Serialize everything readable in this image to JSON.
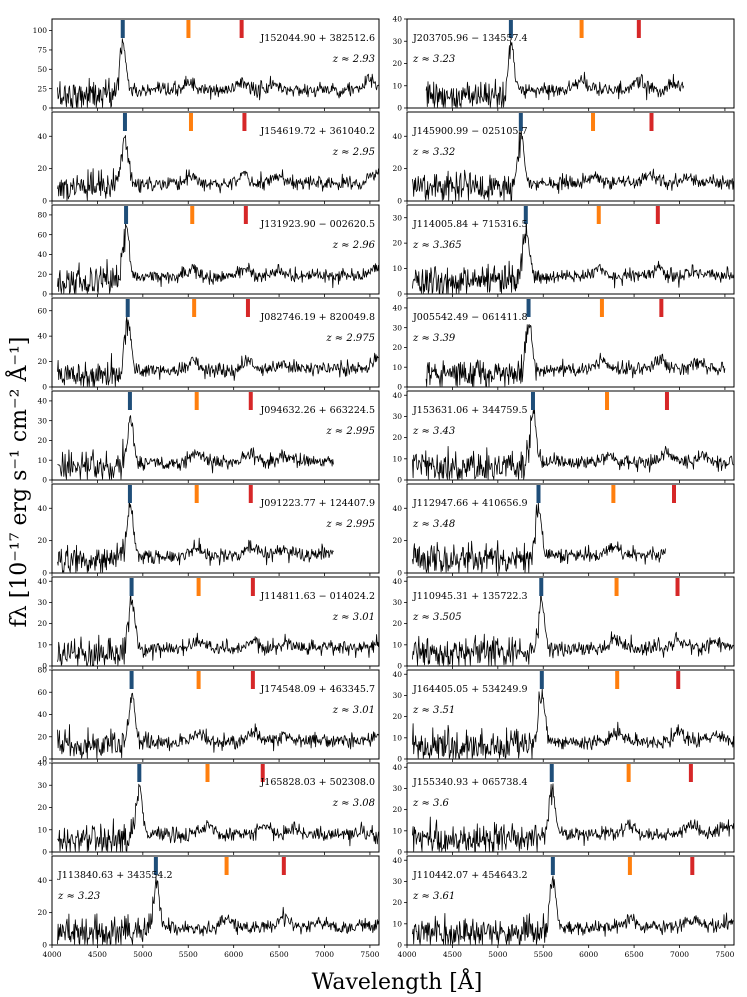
{
  "figure": {
    "ylabel": "fλ [10⁻¹⁷ erg s⁻¹ cm⁻² Å⁻¹]",
    "xlabel": "Wavelength [Å]"
  },
  "chart_data": {
    "type": "line",
    "grid": false,
    "xlim": [
      4000,
      7600
    ],
    "xticks": [
      4000,
      4500,
      5000,
      5500,
      6000,
      6500,
      7000,
      7500
    ],
    "marker_colors": [
      "#1f4e79",
      "#ff7f0e",
      "#d62728"
    ],
    "panels": [
      {
        "name": "J152044.90 + 382512.6",
        "z_label": "z ≈ 2.93",
        "z": 2.93,
        "ylim": [
          0,
          115
        ],
        "yticks": [
          0,
          25,
          50,
          75,
          100
        ],
        "label_side": "right",
        "xmax_data": 7600
      },
      {
        "name": "J154619.72 + 361040.2",
        "z_label": "z ≈ 2.95",
        "z": 2.95,
        "ylim": [
          0,
          55
        ],
        "yticks": [
          0,
          20,
          40
        ],
        "label_side": "right",
        "xmax_data": 7600
      },
      {
        "name": "J131923.90 − 002620.5",
        "z_label": "z ≈ 2.96",
        "z": 2.96,
        "ylim": [
          0,
          90
        ],
        "yticks": [
          0,
          20,
          40,
          60,
          80
        ],
        "label_side": "right",
        "xmax_data": 7600
      },
      {
        "name": "J082746.19 + 820049.8",
        "z_label": "z ≈ 2.975",
        "z": 2.975,
        "ylim": [
          0,
          70
        ],
        "yticks": [
          0,
          20,
          40,
          60
        ],
        "label_side": "right",
        "xmax_data": 7600
      },
      {
        "name": "J094632.26 + 663224.5",
        "z_label": "z ≈ 2.995",
        "z": 2.995,
        "ylim": [
          0,
          45
        ],
        "yticks": [
          0,
          10,
          20,
          30,
          40
        ],
        "label_side": "right",
        "xmax_data": 7100
      },
      {
        "name": "J091223.77 + 124407.9",
        "z_label": "z ≈ 2.995",
        "z": 2.995,
        "ylim": [
          0,
          55
        ],
        "yticks": [
          0,
          20,
          40
        ],
        "label_side": "right",
        "xmax_data": 7100
      },
      {
        "name": "J114811.63 − 014024.2",
        "z_label": "z ≈ 3.01",
        "z": 3.01,
        "ylim": [
          0,
          42
        ],
        "yticks": [
          0,
          10,
          20,
          30,
          40
        ],
        "label_side": "right",
        "xmax_data": 7600
      },
      {
        "name": "J174548.09 + 463345.7",
        "z_label": "z ≈ 3.01",
        "z": 3.01,
        "ylim": [
          0,
          80
        ],
        "yticks": [
          0,
          20,
          40,
          60,
          80
        ],
        "label_side": "right",
        "xmax_data": 7600
      },
      {
        "name": "J165828.03 + 502308.0",
        "z_label": "z ≈ 3.08",
        "z": 3.08,
        "ylim": [
          0,
          40
        ],
        "yticks": [
          0,
          10,
          20,
          30,
          40
        ],
        "label_side": "right",
        "xmax_data": 7600
      },
      {
        "name": "J113840.63 + 343554.2",
        "z_label": "z ≈ 3.23",
        "z": 3.23,
        "ylim": [
          0,
          55
        ],
        "yticks": [
          0,
          20,
          40
        ],
        "label_side": "left",
        "xmax_data": 7600
      },
      {
        "name": "J203705.96 − 134557.4",
        "z_label": "z ≈ 3.23",
        "z": 3.23,
        "ylim": [
          0,
          40
        ],
        "yticks": [
          0,
          10,
          20,
          30,
          40
        ],
        "label_side": "left",
        "xmax_data": 7050
      },
      {
        "name": "J145900.99 − 025105.7",
        "z_label": "z ≈ 3.32",
        "z": 3.32,
        "ylim": [
          0,
          55
        ],
        "yticks": [
          0,
          20,
          40
        ],
        "label_side": "left",
        "xmax_data": 7600
      },
      {
        "name": "J114005.84 + 715316.5",
        "z_label": "z ≈ 3.365",
        "z": 3.365,
        "ylim": [
          0,
          35
        ],
        "yticks": [
          0,
          10,
          20,
          30
        ],
        "label_side": "left",
        "xmax_data": 7600
      },
      {
        "name": "J005542.49 − 061411.8",
        "z_label": "z ≈ 3.39",
        "z": 3.39,
        "ylim": [
          0,
          45
        ],
        "yticks": [
          0,
          10,
          20,
          30,
          40
        ],
        "label_side": "left",
        "xmax_data": 7500
      },
      {
        "name": "J153631.06 + 344759.5",
        "z_label": "z ≈ 3.43",
        "z": 3.43,
        "ylim": [
          0,
          42
        ],
        "yticks": [
          0,
          10,
          20,
          30,
          40
        ],
        "label_side": "left",
        "xmax_data": 7600
      },
      {
        "name": "J112947.66 + 410656.9",
        "z_label": "z ≈ 3.48",
        "z": 3.48,
        "ylim": [
          0,
          55
        ],
        "yticks": [
          0,
          20,
          40
        ],
        "label_side": "left",
        "xmax_data": 6850
      },
      {
        "name": "J110945.31 + 135722.3",
        "z_label": "z ≈ 3.505",
        "z": 3.505,
        "ylim": [
          0,
          42
        ],
        "yticks": [
          0,
          10,
          20,
          30,
          40
        ],
        "label_side": "left",
        "xmax_data": 7600
      },
      {
        "name": "J164405.05 + 534249.9",
        "z_label": "z ≈ 3.51",
        "z": 3.51,
        "ylim": [
          0,
          42
        ],
        "yticks": [
          0,
          10,
          20,
          30,
          40
        ],
        "label_side": "left",
        "xmax_data": 7600
      },
      {
        "name": "J155340.93 + 065738.4",
        "z_label": "z ≈ 3.6",
        "z": 3.6,
        "ylim": [
          0,
          42
        ],
        "yticks": [
          0,
          10,
          20,
          30,
          40
        ],
        "label_side": "left",
        "xmax_data": 7600
      },
      {
        "name": "J110442.07 + 454643.2",
        "z_label": "z ≈ 3.61",
        "z": 3.61,
        "ylim": [
          0,
          42
        ],
        "yticks": [
          0,
          10,
          20,
          30,
          40
        ],
        "label_side": "left",
        "xmax_data": 7600
      }
    ]
  }
}
